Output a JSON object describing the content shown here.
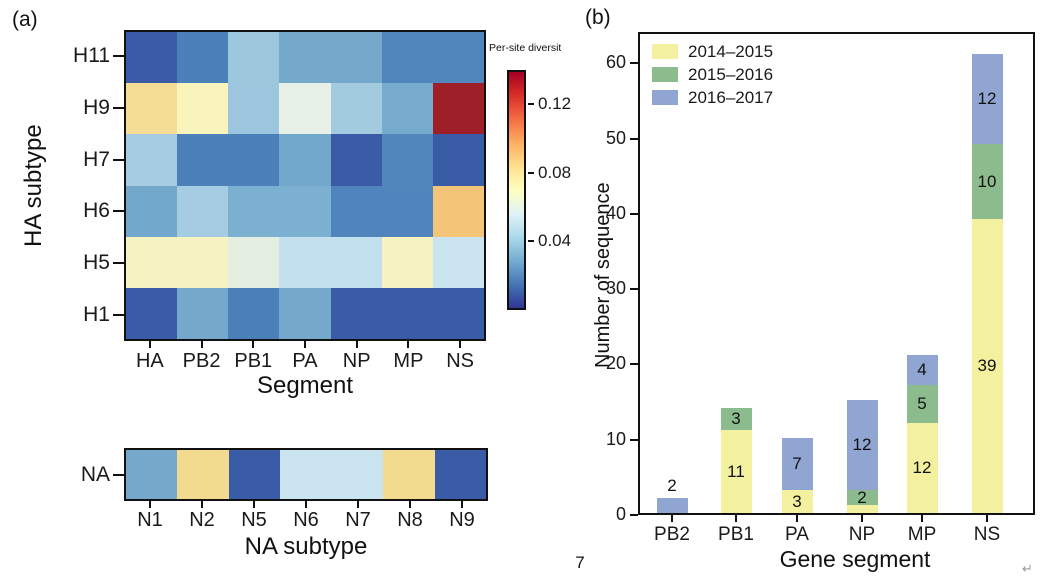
{
  "figure": {
    "panel_a_label": "(a)",
    "panel_b_label": "(b)",
    "page_number": "7",
    "return_mark": "↵"
  },
  "chart_data": [
    {
      "type": "heatmap",
      "name": "ha-subtype-diversity-heatmap",
      "ylabel": "HA subtype",
      "xlabel": "Segment",
      "rows": [
        "H11",
        "H9",
        "H7",
        "H6",
        "H5",
        "H1"
      ],
      "columns": [
        "HA",
        "PB2",
        "PB1",
        "PA",
        "NP",
        "MP",
        "NS"
      ],
      "values": [
        [
          0.008,
          0.018,
          0.038,
          0.028,
          0.028,
          0.021,
          0.021
        ],
        [
          0.084,
          0.072,
          0.038,
          0.06,
          0.04,
          0.028,
          0.139
        ],
        [
          0.04,
          0.018,
          0.018,
          0.028,
          0.008,
          0.021,
          0.008
        ],
        [
          0.028,
          0.04,
          0.031,
          0.031,
          0.021,
          0.021,
          0.092
        ],
        [
          0.072,
          0.072,
          0.06,
          0.048,
          0.048,
          0.072,
          0.049
        ],
        [
          0.008,
          0.028,
          0.018,
          0.028,
          0.008,
          0.008,
          0.008
        ]
      ],
      "cell_colors": [
        [
          "#3a5ca6",
          "#4c80b9",
          "#9cc7dd",
          "#74a9cc",
          "#74a9cc",
          "#5186bc",
          "#5186bc"
        ],
        [
          "#f6dd96",
          "#f8f4bc",
          "#9bc6de",
          "#e7f1e8",
          "#a3cbe0",
          "#76abce",
          "#9e1f28"
        ],
        [
          "#a5cce2",
          "#4c80b9",
          "#4c80b9",
          "#72a8cb",
          "#3a5ca6",
          "#5186bc",
          "#3a5ca6"
        ],
        [
          "#72a8cb",
          "#a5cce2",
          "#7cb0d0",
          "#7cb0d0",
          "#4f85bc",
          "#4f85bc",
          "#f4c478"
        ],
        [
          "#f7f3c0",
          "#f7f3c0",
          "#e4efe2",
          "#c3e0ee",
          "#c3e0ee",
          "#f7f3c0",
          "#c9e3ef"
        ],
        [
          "#3a5ca6",
          "#74a9cc",
          "#4c80b9",
          "#74a9cc",
          "#3a5ca6",
          "#3a5ca6",
          "#3a5ca6"
        ]
      ],
      "colorbar": {
        "title": "Per-site diversit",
        "tick_labels": [
          "0.12",
          "0.08",
          "0.04"
        ],
        "tick_values": [
          0.12,
          0.08,
          0.04
        ],
        "vmin": 0,
        "vmax": 0.14,
        "gradient_bottom_to_top": [
          "#313695",
          "#4575b4",
          "#74add1",
          "#abd9e9",
          "#e0f3f8",
          "#ffffbf",
          "#fee090",
          "#fdae61",
          "#f46d43",
          "#d73027",
          "#a50026"
        ]
      }
    },
    {
      "type": "heatmap",
      "name": "na-subtype-diversity-heatmap",
      "ylabel": "",
      "xlabel": "NA subtype",
      "rows": [
        "NA"
      ],
      "columns": [
        "N1",
        "N2",
        "N5",
        "N6",
        "N7",
        "N8",
        "N9"
      ],
      "values": [
        [
          0.028,
          0.084,
          0.008,
          0.049,
          0.049,
          0.084,
          0.008
        ]
      ],
      "cell_colors": [
        [
          "#74a9cc",
          "#f2db8e",
          "#3a5ca6",
          "#c9e3ef",
          "#c9e3ef",
          "#f2db8e",
          "#3a5ca6"
        ]
      ]
    },
    {
      "type": "bar",
      "name": "sequence-count-by-gene-segment",
      "stacked": true,
      "xlabel": "Gene segment",
      "ylabel": "Number of sequence",
      "ylim": [
        0,
        64
      ],
      "yticks": [
        0,
        10,
        20,
        30,
        40,
        50,
        60
      ],
      "categories": [
        "PB2",
        "PB1",
        "PA",
        "NP",
        "MP",
        "NS"
      ],
      "series": [
        {
          "name": "2014–2015",
          "color": "#f3f09f",
          "values": [
            0,
            11,
            3,
            1,
            12,
            39
          ],
          "labels": [
            null,
            "11",
            "3",
            null,
            "12",
            "39"
          ],
          "label_positions": [
            null,
            "inside",
            "inside",
            null,
            "inside",
            "inside"
          ]
        },
        {
          "name": "2015–2016",
          "color": "#8cbb8d",
          "values": [
            0,
            3,
            0,
            2,
            5,
            10
          ],
          "labels": [
            null,
            "3",
            null,
            "2",
            "5",
            "10"
          ],
          "label_positions": [
            null,
            "inside",
            null,
            "inside",
            "inside",
            "inside"
          ]
        },
        {
          "name": "2016–2017",
          "color": "#90a5d1",
          "values": [
            2,
            0,
            7,
            12,
            4,
            12
          ],
          "labels": [
            "2",
            null,
            "7",
            "12",
            "4",
            "12"
          ],
          "label_positions": [
            "above",
            null,
            "inside",
            "inside",
            "inside",
            "inside"
          ]
        }
      ],
      "legend": [
        "2014–2015",
        "2015–2016",
        "2016–2017"
      ],
      "legend_position": "top-left",
      "totals": [
        2,
        14,
        10,
        15,
        21,
        61
      ]
    }
  ]
}
